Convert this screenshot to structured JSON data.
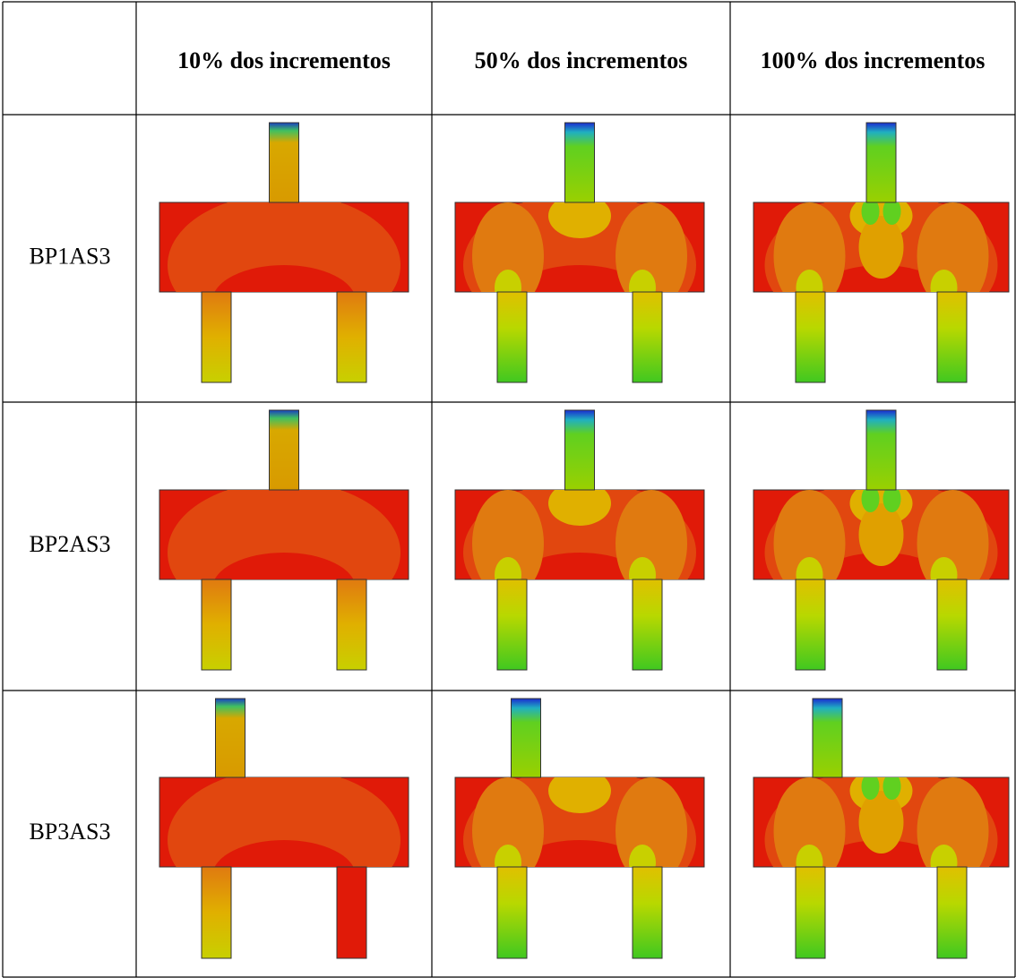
{
  "table": {
    "columns": [
      "10% dos incrementos",
      "50% dos incrementos",
      "100% dos incrementos"
    ],
    "rows": [
      "BP1AS3",
      "BP2AS3",
      "BP3AS3"
    ]
  }
}
